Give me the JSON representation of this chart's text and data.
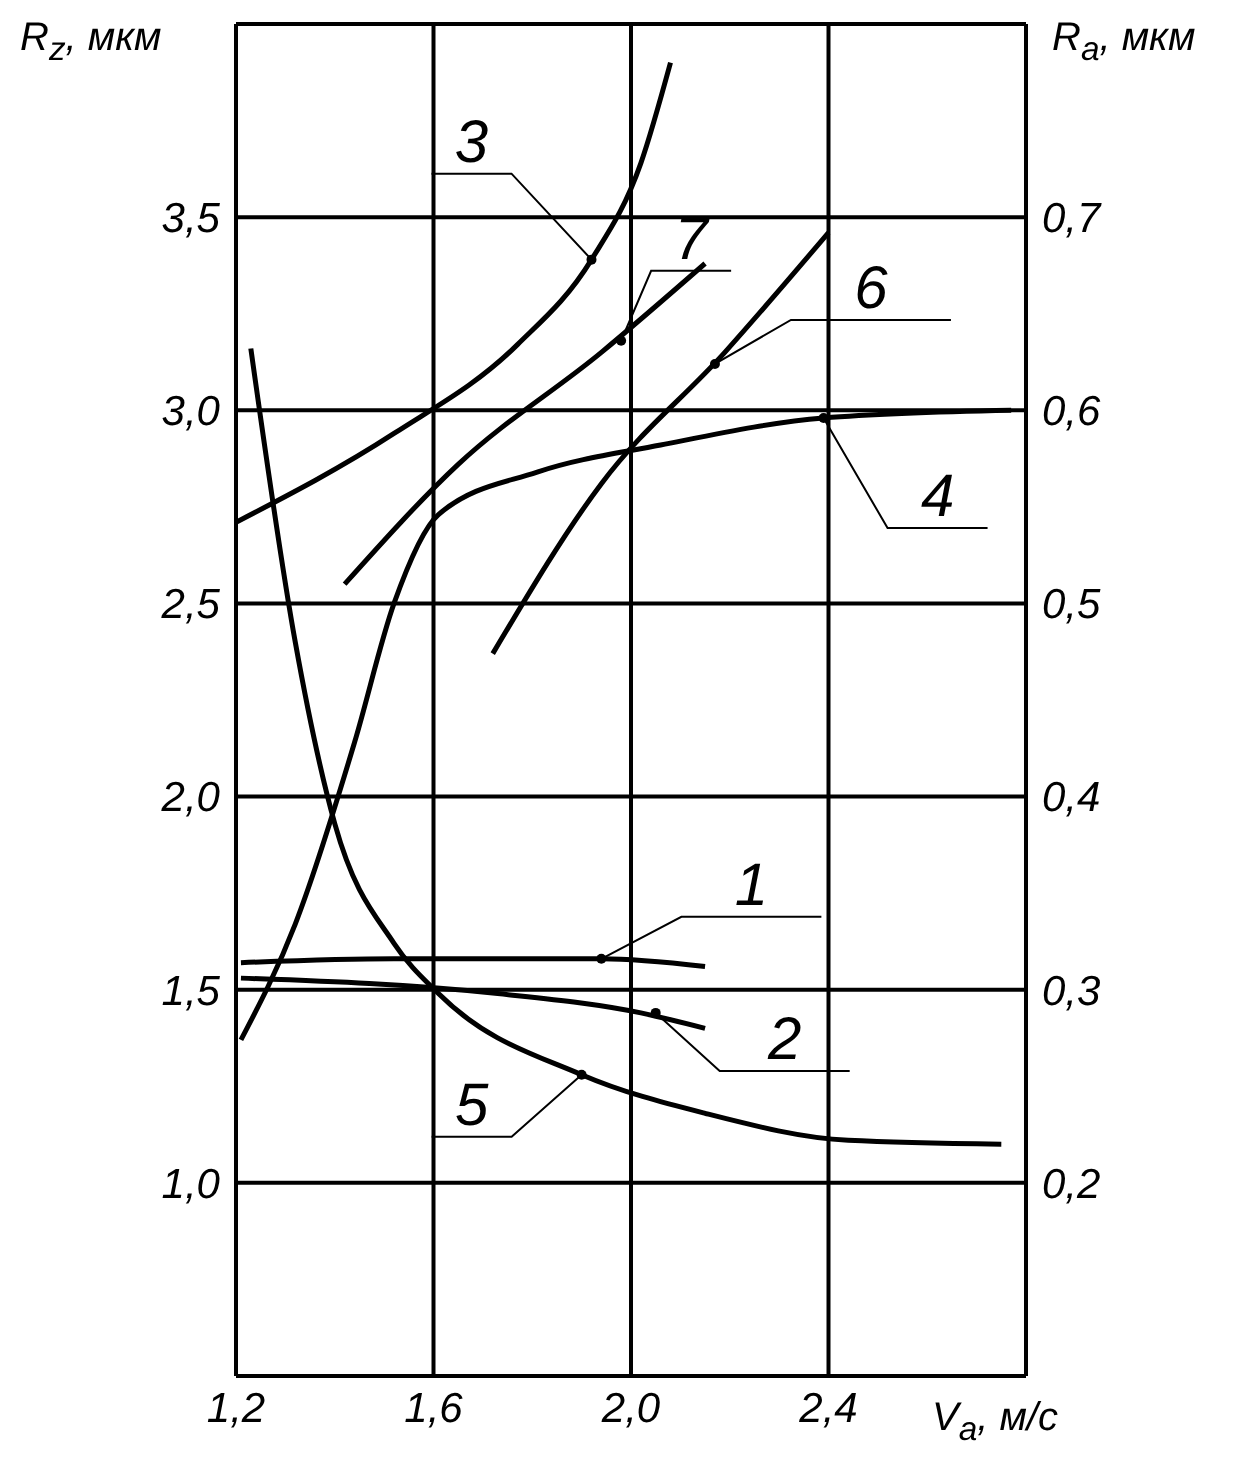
{
  "chart_data": {
    "type": "line",
    "xlabel": "V$_{a}$, м/с",
    "ylabel": "R$_{z}$, мкм",
    "y2label": "R$_{a}$, мкм",
    "xlim": [
      1.2,
      2.8
    ],
    "xticks": [
      {
        "value": 1.2,
        "label": "1,2"
      },
      {
        "value": 1.6,
        "label": "1,6"
      },
      {
        "value": 2.0,
        "label": "2,0"
      },
      {
        "value": 2.4,
        "label": "2,4"
      },
      {
        "value": 2.8,
        "label": null
      }
    ],
    "ylim": [
      0.5,
      4.0
    ],
    "yticks": [
      {
        "value": 0.5,
        "label": null
      },
      {
        "value": 1.0,
        "label": "1,0"
      },
      {
        "value": 1.5,
        "label": "1,5"
      },
      {
        "value": 2.0,
        "label": "2,0"
      },
      {
        "value": 2.5,
        "label": "2,5"
      },
      {
        "value": 3.0,
        "label": "3,0"
      },
      {
        "value": 3.5,
        "label": "3,5"
      },
      {
        "value": 4.0,
        "label": null
      }
    ],
    "y2lim": [
      0.1,
      0.8
    ],
    "y2ticks": [
      {
        "value": 0.2,
        "label": "0,2"
      },
      {
        "value": 0.3,
        "label": "0,3"
      },
      {
        "value": 0.4,
        "label": "0,4"
      },
      {
        "value": 0.5,
        "label": "0,5"
      },
      {
        "value": 0.6,
        "label": "0,6"
      },
      {
        "value": 0.7,
        "label": "0,7"
      }
    ],
    "grid": true,
    "marker": "none",
    "line_style": "solid",
    "series": [
      {
        "color": "#000000",
        "x": [
          1.21,
          1.52,
          1.94,
          2.15
        ],
        "values": [
          1.57,
          1.58,
          1.58,
          1.56
        ]
      },
      {
        "color": "#000000",
        "x": [
          1.21,
          1.73,
          2.02,
          2.15
        ],
        "values": [
          1.53,
          1.49,
          1.44,
          1.4
        ]
      },
      {
        "color": "#000000",
        "x": [
          1.2,
          1.52,
          1.77,
          1.92,
          2.02,
          2.08
        ],
        "values": [
          2.71,
          2.94,
          3.17,
          3.39,
          3.64,
          3.9
        ]
      },
      {
        "color": "#000000",
        "x": [
          1.21,
          1.32,
          1.44,
          1.52,
          1.61,
          1.81,
          2.06,
          2.39,
          2.77
        ],
        "values": [
          1.37,
          1.67,
          2.14,
          2.5,
          2.73,
          2.84,
          2.91,
          2.98,
          3.0
        ]
      },
      {
        "color": "#000000",
        "x": [
          1.23,
          1.32,
          1.4,
          1.52,
          1.61,
          1.9,
          2.15,
          2.44,
          2.75
        ],
        "values": [
          3.16,
          2.4,
          1.93,
          1.62,
          1.49,
          1.28,
          1.18,
          1.11,
          1.1
        ]
      },
      {
        "color": "#000000",
        "x": [
          1.72,
          1.94,
          2.19,
          2.4
        ],
        "values": [
          2.37,
          2.81,
          3.15,
          3.46
        ]
      },
      {
        "color": "#000000",
        "x": [
          1.42,
          1.65,
          1.94,
          2.15
        ],
        "values": [
          2.55,
          2.86,
          3.15,
          3.38
        ]
      }
    ],
    "annotations": [
      {
        "text": "1",
        "x": 1.94,
        "y": 1.58
      },
      {
        "text": "2",
        "x": 2.05,
        "y": 1.44
      },
      {
        "text": "3",
        "x": 1.92,
        "y": 3.39
      },
      {
        "text": "4",
        "x": 2.39,
        "y": 2.98
      },
      {
        "text": "5",
        "x": 1.9,
        "y": 1.28
      },
      {
        "text": "6",
        "x": 2.17,
        "y": 3.12
      },
      {
        "text": "7",
        "x": 1.98,
        "y": 3.18
      }
    ]
  }
}
